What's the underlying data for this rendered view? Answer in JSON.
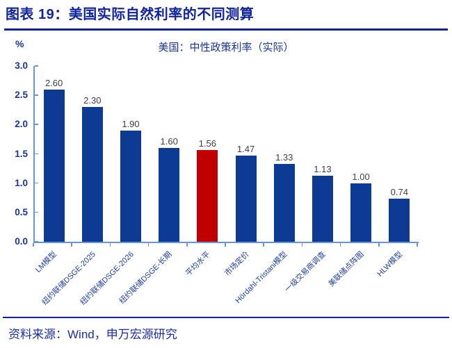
{
  "header": {
    "title": "图表 19：美国实际自然利率的不同测算"
  },
  "chart_data": {
    "type": "bar",
    "title": "美国：中性政策利率（实际）",
    "unit_label": "%",
    "categories": [
      "LM模型",
      "纽约联储DSGE-2025",
      "纽约联储DSGE-2026",
      "纽约联储DSGE-长期",
      "平均水平",
      "市场定价",
      "Hördahl-Tristani模型",
      "一级交易商调查",
      "美联储点阵图",
      "HLW模型"
    ],
    "values": [
      2.6,
      2.3,
      1.9,
      1.6,
      1.56,
      1.47,
      1.33,
      1.13,
      1.0,
      0.74
    ],
    "highlight_index": 4,
    "ylim": [
      0,
      3.0
    ],
    "yticks": [
      3.0,
      2.5,
      2.0,
      1.5,
      1.0,
      0.5,
      0.0
    ],
    "grid": false,
    "legend": null,
    "colors": {
      "bar": "#0D3B94",
      "highlight": "#C00000",
      "axis": "#6795D5",
      "value_label": "#404040",
      "tick_label": "#17349C",
      "accent": "#10239E"
    }
  },
  "footer": {
    "source": "资料来源：Wind，申万宏源研究"
  }
}
